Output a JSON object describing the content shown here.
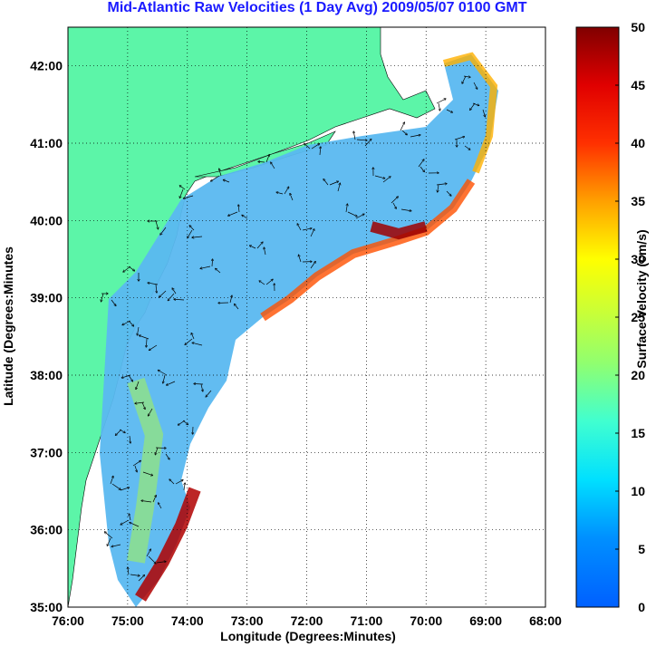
{
  "title": "Mid-Atlantic Raw Velocities (1 Day Avg) 2009/05/07 0100 GMT",
  "chart_data": {
    "type": "heatmap",
    "title": "Mid-Atlantic Raw Velocities (1 Day Avg) 2009/05/07 0100 GMT",
    "xlabel": "Longitude (Degrees:Minutes)",
    "ylabel": "Latitude (Degrees:Minutes",
    "colorbar_label": "Surface Velocity (cm/s)",
    "colorbar_ticks": [
      "0",
      "5",
      "10",
      "15",
      "20",
      "25",
      "30",
      "35",
      "40",
      "45",
      "50"
    ],
    "colorbar_range": [
      0,
      50
    ],
    "x_ticks": [
      "76:00",
      "75:00",
      "74:00",
      "73:00",
      "72:00",
      "71:00",
      "70:00",
      "69:00",
      "68:00"
    ],
    "y_ticks": [
      "35:00",
      "36:00",
      "37:00",
      "38:00",
      "39:00",
      "40:00",
      "41:00",
      "42:00"
    ],
    "xlim": [
      -76,
      -68
    ],
    "ylim": [
      35,
      42.5
    ],
    "grid": "dotted",
    "land_color": "#5cf5a8",
    "colormap": "jet"
  }
}
